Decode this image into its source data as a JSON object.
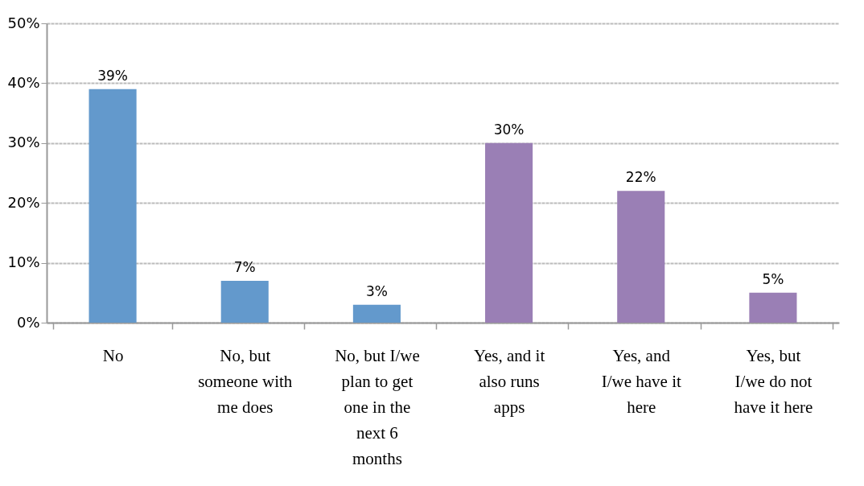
{
  "chart_data": {
    "type": "bar",
    "categories": [
      "No",
      "No, but someone with me does",
      "No, but I/we plan to get one in the next 6 months",
      "Yes, and it also runs apps",
      "Yes, and I/we have it here",
      "Yes, but I/we do not have it here"
    ],
    "values": [
      39,
      7,
      3,
      30,
      22,
      5
    ],
    "colors": [
      "#6399cc",
      "#6399cc",
      "#6399cc",
      "#9a7fb5",
      "#9a7fb5",
      "#9a7fb5"
    ],
    "value_labels": [
      "39%",
      "7%",
      "3%",
      "30%",
      "22%",
      "5%"
    ],
    "ylim": [
      0,
      50
    ],
    "yticks": [
      {
        "value": 0,
        "label": "0%"
      },
      {
        "value": 10,
        "label": "10%"
      },
      {
        "value": 20,
        "label": "20%"
      },
      {
        "value": 30,
        "label": "30%"
      },
      {
        "value": 40,
        "label": "40%"
      },
      {
        "value": 50,
        "label": "50%"
      }
    ],
    "grid": "y"
  }
}
